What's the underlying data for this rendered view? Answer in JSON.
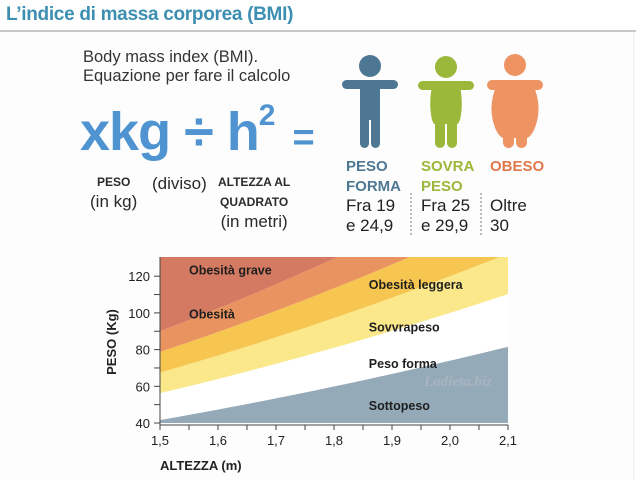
{
  "header": {
    "title": "L’indice di massa corporea (BMI)"
  },
  "formula": {
    "subtitle_line1": "Body mass index (BMI).",
    "subtitle_line2": "Equazione per fare il calcolo",
    "numerator": "xkg",
    "divide": "÷",
    "denominator": "h",
    "exponent": "2",
    "equals": "=",
    "peso_label": "PESO",
    "peso_unit": "(in kg)",
    "diviso": "(diviso)",
    "altezza_label_1": "ALTEZZA AL",
    "altezza_label_2": "QUADRATO",
    "altezza_unit": "(in metri)",
    "color": "#4f93d1"
  },
  "categories": [
    {
      "icon": "normal-weight-person-icon",
      "label_1": "PESO",
      "label_2": "FORMA",
      "range_1": "Fra 19",
      "range_2": "e 24,9",
      "color": "#4e7793"
    },
    {
      "icon": "overweight-person-icon",
      "label_1": "SOVRA",
      "label_2": "PESO",
      "range_1": "Fra 25",
      "range_2": "e 29,9",
      "color": "#9bb83a"
    },
    {
      "icon": "obese-person-icon",
      "label_1": "OBESO",
      "label_2": "",
      "range_1": "Oltre",
      "range_2": "30",
      "color": "#ee9362"
    }
  ],
  "chart_data": {
    "type": "area",
    "title": "",
    "xlabel": "ALTEZZA (m)",
    "ylabel": "PESO (Kg)",
    "xlim": [
      1.5,
      2.1
    ],
    "ylim": [
      40,
      130
    ],
    "x_ticks": [
      "1,5",
      "1,6",
      "1,7",
      "1,8",
      "1,9",
      "2,0",
      "2,1"
    ],
    "x_tick_values": [
      1.5,
      1.6,
      1.7,
      1.8,
      1.9,
      2.0,
      2.1
    ],
    "y_ticks": [
      "40",
      "60",
      "80",
      "100",
      "120"
    ],
    "y_tick_values": [
      40,
      60,
      80,
      100,
      120
    ],
    "grid": false,
    "band_boundaries_bmi": [
      18.5,
      25,
      30,
      35,
      40
    ],
    "series": [
      {
        "name": "Sottopeso",
        "bmi_range": [
          0,
          18.5
        ],
        "color": "#94aab9",
        "label_pos": [
          1.86,
          47
        ]
      },
      {
        "name": "Peso forma",
        "bmi_range": [
          18.5,
          25
        ],
        "color": "#ffffff",
        "label_pos": [
          1.86,
          70
        ]
      },
      {
        "name": "Sovvrapeso",
        "bmi_range": [
          25,
          30
        ],
        "color": "#fbe88a",
        "label_pos": [
          1.86,
          90
        ]
      },
      {
        "name": "Obesità leggera",
        "bmi_range": [
          30,
          35
        ],
        "color": "#f6c650",
        "label_pos": [
          1.86,
          113
        ]
      },
      {
        "name": "Obesità",
        "bmi_range": [
          35,
          40
        ],
        "color": "#e99460",
        "label_pos": [
          1.55,
          97
        ]
      },
      {
        "name": "Obesità grave",
        "bmi_range": [
          40,
          999
        ],
        "color": "#d47a62",
        "label_pos": [
          1.55,
          121
        ]
      }
    ],
    "annotations": [
      "Ladieta.biz"
    ]
  }
}
